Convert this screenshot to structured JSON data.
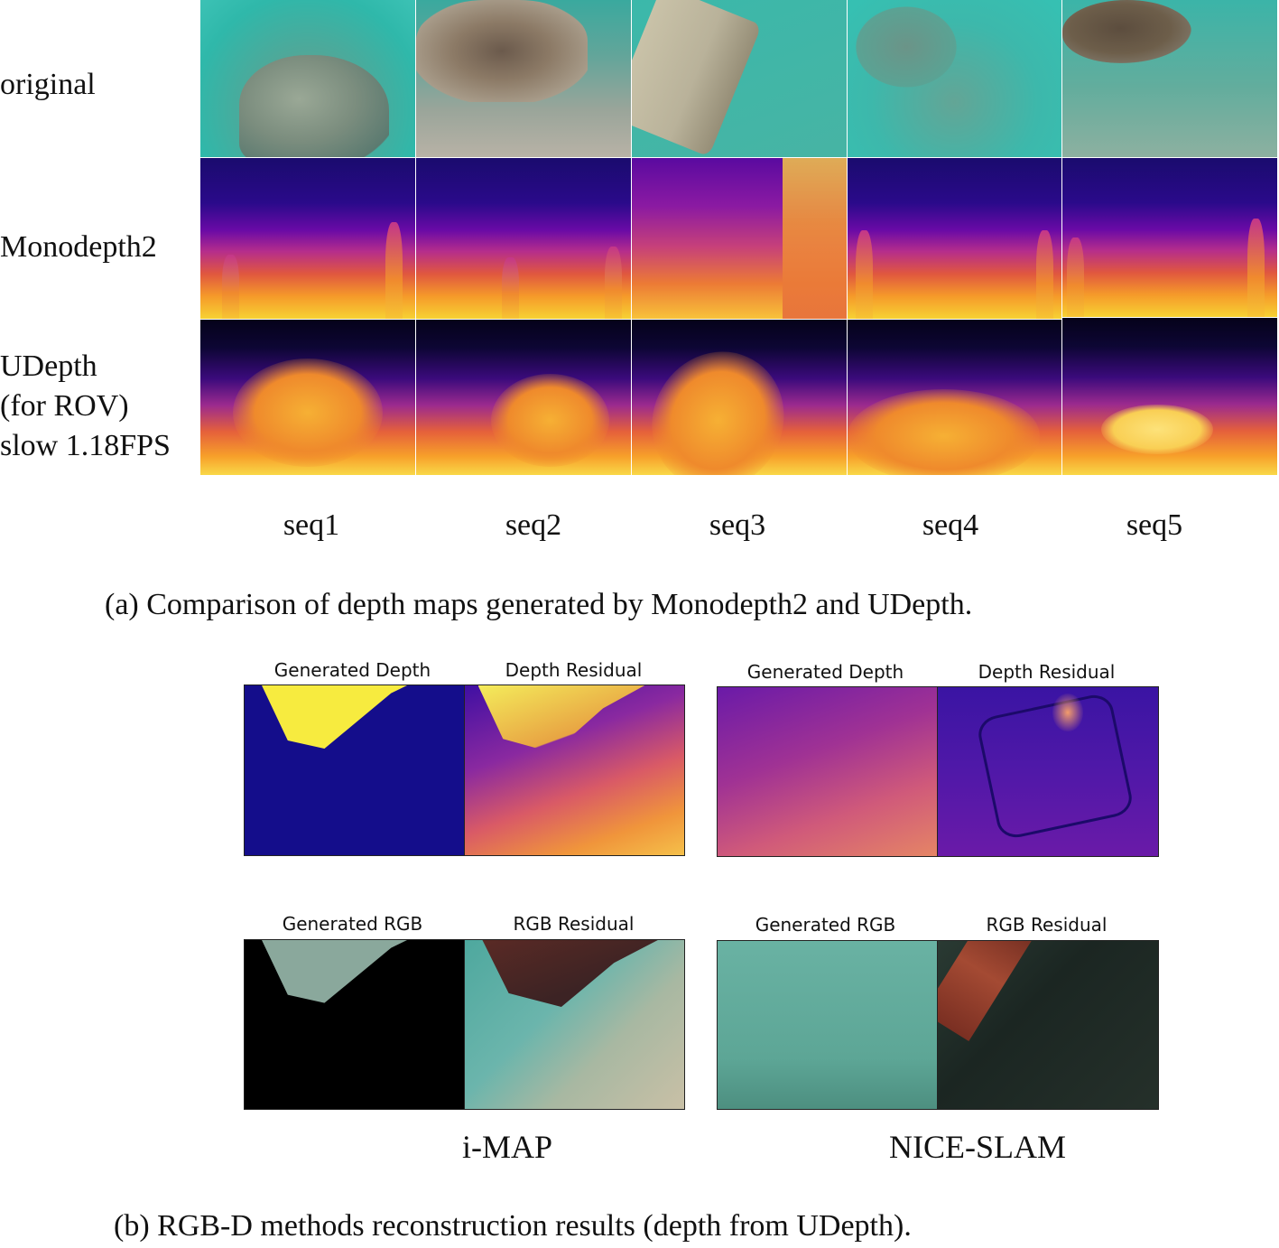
{
  "part_a": {
    "row_labels": {
      "original": "original",
      "monodepth2": "Monodepth2",
      "udepth_line1": "UDepth",
      "udepth_line2": "(for ROV)",
      "udepth_line3": "slow 1.18FPS"
    },
    "columns": [
      "seq1",
      "seq2",
      "seq3",
      "seq4",
      "seq5"
    ],
    "caption": "(a) Comparison of depth maps generated by Monodepth2 and UDepth."
  },
  "part_b": {
    "panel_titles": {
      "generated_depth": "Generated Depth",
      "depth_residual": "Depth Residual",
      "generated_rgb": "Generated RGB",
      "rgb_residual": "RGB Residual"
    },
    "methods": [
      "i-MAP",
      "NICE-SLAM"
    ],
    "caption": "(b) RGB-D methods reconstruction results (depth from UDepth)."
  },
  "colors": {
    "plasma_low": "#0d0887",
    "plasma_mid": "#cc4778",
    "plasma_high": "#f0f921",
    "water": "#3cc2b5"
  }
}
